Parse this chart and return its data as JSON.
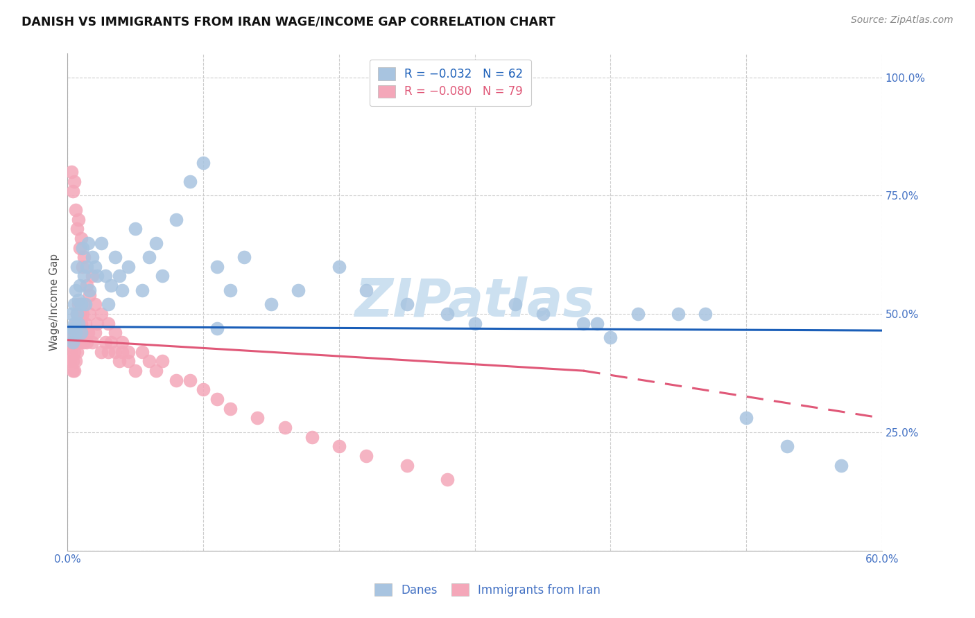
{
  "title": "DANISH VS IMMIGRANTS FROM IRAN WAGE/INCOME GAP CORRELATION CHART",
  "source": "Source: ZipAtlas.com",
  "ylabel": "Wage/Income Gap",
  "xlim": [
    0.0,
    0.6
  ],
  "ylim": [
    0.0,
    1.05
  ],
  "danes_color": "#a8c4e0",
  "iran_color": "#f4a7b9",
  "danes_line_color": "#1a5eb8",
  "iran_line_color": "#e05878",
  "watermark": "ZIPatlas",
  "watermark_color": "#cce0f0",
  "danes_R": -0.032,
  "danes_N": 62,
  "iran_R": -0.08,
  "iran_N": 79,
  "danes_x": [
    0.002,
    0.003,
    0.004,
    0.004,
    0.005,
    0.005,
    0.006,
    0.006,
    0.007,
    0.007,
    0.008,
    0.008,
    0.009,
    0.01,
    0.01,
    0.011,
    0.012,
    0.013,
    0.014,
    0.015,
    0.016,
    0.018,
    0.02,
    0.022,
    0.025,
    0.028,
    0.03,
    0.032,
    0.035,
    0.038,
    0.04,
    0.045,
    0.05,
    0.055,
    0.06,
    0.065,
    0.07,
    0.08,
    0.09,
    0.1,
    0.11,
    0.12,
    0.13,
    0.15,
    0.17,
    0.2,
    0.22,
    0.25,
    0.28,
    0.3,
    0.33,
    0.35,
    0.38,
    0.4,
    0.42,
    0.45,
    0.47,
    0.5,
    0.53,
    0.57,
    0.39,
    0.11
  ],
  "danes_y": [
    0.46,
    0.5,
    0.47,
    0.44,
    0.52,
    0.48,
    0.55,
    0.46,
    0.6,
    0.5,
    0.53,
    0.48,
    0.56,
    0.52,
    0.46,
    0.64,
    0.58,
    0.52,
    0.6,
    0.65,
    0.55,
    0.62,
    0.6,
    0.58,
    0.65,
    0.58,
    0.52,
    0.56,
    0.62,
    0.58,
    0.55,
    0.6,
    0.68,
    0.55,
    0.62,
    0.65,
    0.58,
    0.7,
    0.78,
    0.82,
    0.6,
    0.55,
    0.62,
    0.52,
    0.55,
    0.6,
    0.55,
    0.52,
    0.5,
    0.48,
    0.52,
    0.5,
    0.48,
    0.45,
    0.5,
    0.5,
    0.5,
    0.28,
    0.22,
    0.18,
    0.48,
    0.47
  ],
  "iran_x": [
    0.002,
    0.002,
    0.003,
    0.003,
    0.004,
    0.004,
    0.004,
    0.005,
    0.005,
    0.005,
    0.006,
    0.006,
    0.006,
    0.007,
    0.007,
    0.007,
    0.008,
    0.008,
    0.008,
    0.009,
    0.009,
    0.01,
    0.01,
    0.01,
    0.011,
    0.011,
    0.012,
    0.012,
    0.013,
    0.014,
    0.015,
    0.016,
    0.018,
    0.02,
    0.022,
    0.025,
    0.028,
    0.03,
    0.032,
    0.035,
    0.038,
    0.04,
    0.045,
    0.05,
    0.055,
    0.06,
    0.065,
    0.07,
    0.08,
    0.09,
    0.1,
    0.11,
    0.12,
    0.14,
    0.16,
    0.18,
    0.2,
    0.22,
    0.25,
    0.28,
    0.003,
    0.004,
    0.005,
    0.006,
    0.007,
    0.008,
    0.009,
    0.01,
    0.011,
    0.012,
    0.014,
    0.016,
    0.018,
    0.02,
    0.025,
    0.03,
    0.035,
    0.04,
    0.045
  ],
  "iran_y": [
    0.44,
    0.4,
    0.46,
    0.42,
    0.44,
    0.4,
    0.38,
    0.46,
    0.42,
    0.38,
    0.48,
    0.44,
    0.4,
    0.5,
    0.46,
    0.42,
    0.52,
    0.48,
    0.44,
    0.5,
    0.46,
    0.52,
    0.48,
    0.44,
    0.5,
    0.46,
    0.52,
    0.44,
    0.48,
    0.44,
    0.46,
    0.5,
    0.44,
    0.46,
    0.48,
    0.42,
    0.44,
    0.42,
    0.44,
    0.42,
    0.4,
    0.42,
    0.4,
    0.38,
    0.42,
    0.4,
    0.38,
    0.4,
    0.36,
    0.36,
    0.34,
    0.32,
    0.3,
    0.28,
    0.26,
    0.24,
    0.22,
    0.2,
    0.18,
    0.15,
    0.8,
    0.76,
    0.78,
    0.72,
    0.68,
    0.7,
    0.64,
    0.66,
    0.6,
    0.62,
    0.56,
    0.54,
    0.58,
    0.52,
    0.5,
    0.48,
    0.46,
    0.44,
    0.42
  ]
}
